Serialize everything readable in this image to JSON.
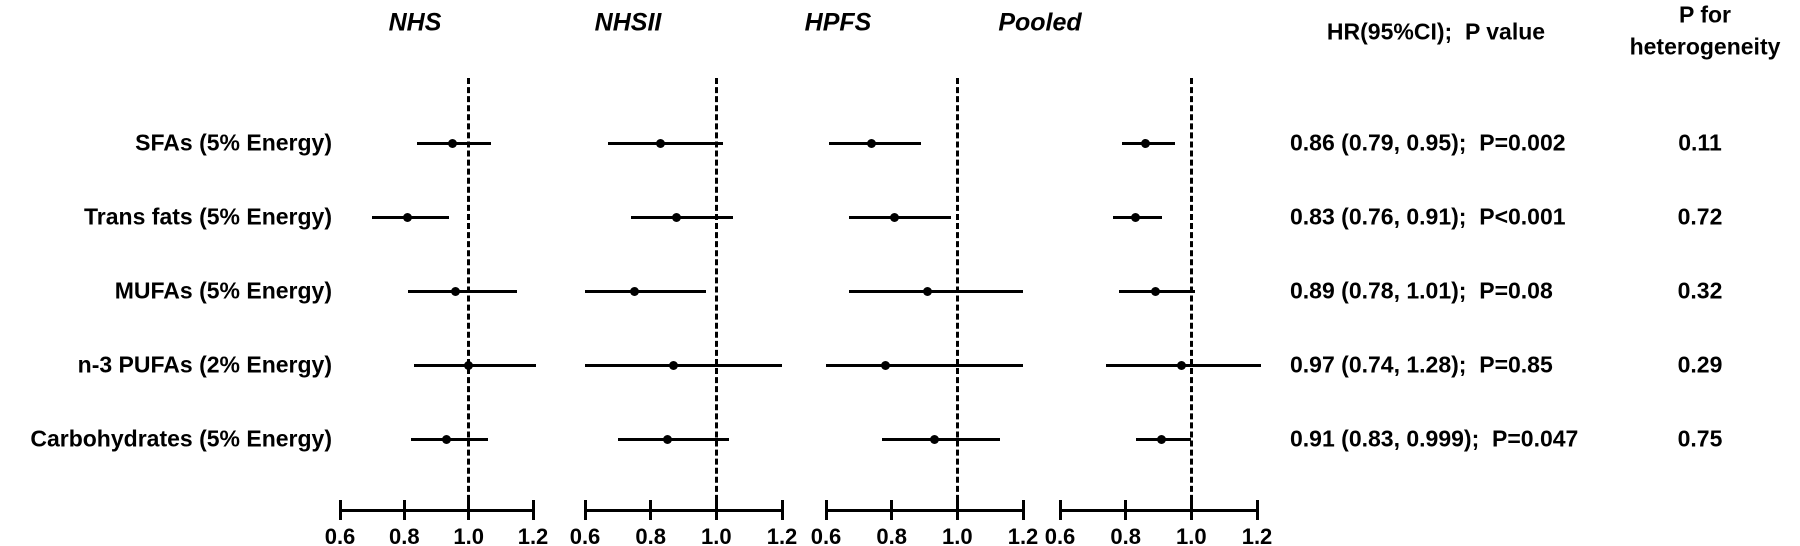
{
  "chart_data": {
    "type": "forest",
    "title": "",
    "panels": [
      "NHS",
      "NHSII",
      "HPFS",
      "Pooled"
    ],
    "x_axis": {
      "min": 0.6,
      "max": 1.2,
      "ticks": [
        0.6,
        0.8,
        1.0,
        1.2
      ],
      "tick_labels": [
        "0.6",
        "0.8",
        "1.0",
        "1.2"
      ],
      "reference_line": 1.0,
      "grid": false
    },
    "columns": {
      "hr_header": "HR(95%CI);  P value",
      "het_header_lines": [
        "P for",
        "heterogeneity"
      ]
    },
    "rows": [
      {
        "label": "SFAs (5% Energy)",
        "points": [
          {
            "cohort": "NHS",
            "hr": 0.95,
            "lo": 0.84,
            "hi": 1.07
          },
          {
            "cohort": "NHSII",
            "hr": 0.83,
            "lo": 0.67,
            "hi": 1.02
          },
          {
            "cohort": "HPFS",
            "hr": 0.74,
            "lo": 0.61,
            "hi": 0.89
          },
          {
            "cohort": "Pooled",
            "hr": 0.86,
            "lo": 0.79,
            "hi": 0.95
          }
        ],
        "hr_text": "0.86 (0.79, 0.95);  P=0.002",
        "p_heterogeneity": "0.11"
      },
      {
        "label": "Trans fats (5% Energy)",
        "points": [
          {
            "cohort": "NHS",
            "hr": 0.81,
            "lo": 0.7,
            "hi": 0.94
          },
          {
            "cohort": "NHSII",
            "hr": 0.88,
            "lo": 0.74,
            "hi": 1.05
          },
          {
            "cohort": "HPFS",
            "hr": 0.81,
            "lo": 0.67,
            "hi": 0.98
          },
          {
            "cohort": "Pooled",
            "hr": 0.83,
            "lo": 0.76,
            "hi": 0.91
          }
        ],
        "hr_text": "0.83 (0.76, 0.91);  P<0.001",
        "p_heterogeneity": "0.72"
      },
      {
        "label": "MUFAs (5% Energy)",
        "points": [
          {
            "cohort": "NHS",
            "hr": 0.96,
            "lo": 0.81,
            "hi": 1.15
          },
          {
            "cohort": "NHSII",
            "hr": 0.75,
            "lo": 0.6,
            "hi": 0.97
          },
          {
            "cohort": "HPFS",
            "hr": 0.91,
            "lo": 0.67,
            "hi": 1.2
          },
          {
            "cohort": "Pooled",
            "hr": 0.89,
            "lo": 0.78,
            "hi": 1.01
          }
        ],
        "hr_text": "0.89 (0.78, 1.01);  P=0.08",
        "p_heterogeneity": "0.32"
      },
      {
        "label": "n-3 PUFAs (2% Energy)",
        "points": [
          {
            "cohort": "NHS",
            "hr": 1.0,
            "lo": 0.83,
            "hi": 1.21
          },
          {
            "cohort": "NHSII",
            "hr": 0.87,
            "lo": 0.6,
            "hi": 1.2
          },
          {
            "cohort": "HPFS",
            "hr": 0.78,
            "lo": 0.6,
            "hi": 1.2
          },
          {
            "cohort": "Pooled",
            "hr": 0.97,
            "lo": 0.74,
            "hi": 1.28
          }
        ],
        "hr_text": "0.97 (0.74, 1.28);  P=0.85",
        "p_heterogeneity": "0.29"
      },
      {
        "label": "Carbohydrates (5% Energy)",
        "points": [
          {
            "cohort": "NHS",
            "hr": 0.93,
            "lo": 0.82,
            "hi": 1.06
          },
          {
            "cohort": "NHSII",
            "hr": 0.85,
            "lo": 0.7,
            "hi": 1.04
          },
          {
            "cohort": "HPFS",
            "hr": 0.93,
            "lo": 0.77,
            "hi": 1.13
          },
          {
            "cohort": "Pooled",
            "hr": 0.91,
            "lo": 0.83,
            "hi": 1.0
          }
        ],
        "hr_text": "0.91 (0.83, 0.999);  P=0.047",
        "p_heterogeneity": "0.75"
      }
    ]
  }
}
